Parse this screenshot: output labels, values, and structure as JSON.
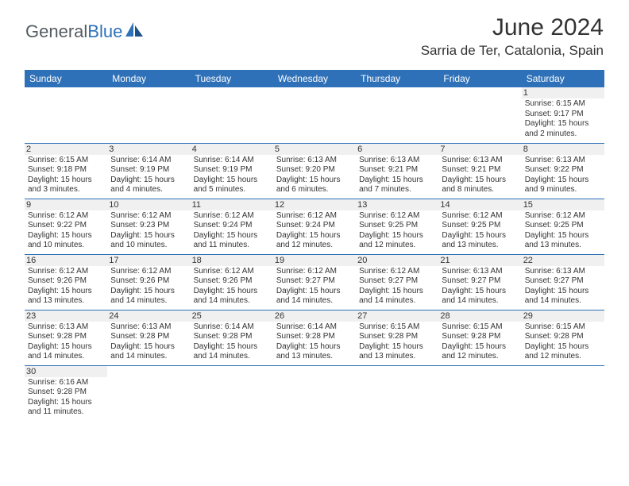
{
  "brand": {
    "general": "General",
    "blue": "Blue"
  },
  "title": "June 2024",
  "location": "Sarria de Ter, Catalonia, Spain",
  "colors": {
    "header_bg": "#2f71b8",
    "header_text": "#ffffff",
    "daynum_bg": "#f0f0f0",
    "border": "#2f71b8",
    "text": "#333333"
  },
  "weekdays": [
    "Sunday",
    "Monday",
    "Tuesday",
    "Wednesday",
    "Thursday",
    "Friday",
    "Saturday"
  ],
  "weeks": [
    [
      null,
      null,
      null,
      null,
      null,
      null,
      {
        "n": "1",
        "sr": "6:15 AM",
        "ss": "9:17 PM",
        "dl": "15 hours and 2 minutes."
      }
    ],
    [
      {
        "n": "2",
        "sr": "6:15 AM",
        "ss": "9:18 PM",
        "dl": "15 hours and 3 minutes."
      },
      {
        "n": "3",
        "sr": "6:14 AM",
        "ss": "9:19 PM",
        "dl": "15 hours and 4 minutes."
      },
      {
        "n": "4",
        "sr": "6:14 AM",
        "ss": "9:19 PM",
        "dl": "15 hours and 5 minutes."
      },
      {
        "n": "5",
        "sr": "6:13 AM",
        "ss": "9:20 PM",
        "dl": "15 hours and 6 minutes."
      },
      {
        "n": "6",
        "sr": "6:13 AM",
        "ss": "9:21 PM",
        "dl": "15 hours and 7 minutes."
      },
      {
        "n": "7",
        "sr": "6:13 AM",
        "ss": "9:21 PM",
        "dl": "15 hours and 8 minutes."
      },
      {
        "n": "8",
        "sr": "6:13 AM",
        "ss": "9:22 PM",
        "dl": "15 hours and 9 minutes."
      }
    ],
    [
      {
        "n": "9",
        "sr": "6:12 AM",
        "ss": "9:22 PM",
        "dl": "15 hours and 10 minutes."
      },
      {
        "n": "10",
        "sr": "6:12 AM",
        "ss": "9:23 PM",
        "dl": "15 hours and 10 minutes."
      },
      {
        "n": "11",
        "sr": "6:12 AM",
        "ss": "9:24 PM",
        "dl": "15 hours and 11 minutes."
      },
      {
        "n": "12",
        "sr": "6:12 AM",
        "ss": "9:24 PM",
        "dl": "15 hours and 12 minutes."
      },
      {
        "n": "13",
        "sr": "6:12 AM",
        "ss": "9:25 PM",
        "dl": "15 hours and 12 minutes."
      },
      {
        "n": "14",
        "sr": "6:12 AM",
        "ss": "9:25 PM",
        "dl": "15 hours and 13 minutes."
      },
      {
        "n": "15",
        "sr": "6:12 AM",
        "ss": "9:25 PM",
        "dl": "15 hours and 13 minutes."
      }
    ],
    [
      {
        "n": "16",
        "sr": "6:12 AM",
        "ss": "9:26 PM",
        "dl": "15 hours and 13 minutes."
      },
      {
        "n": "17",
        "sr": "6:12 AM",
        "ss": "9:26 PM",
        "dl": "15 hours and 14 minutes."
      },
      {
        "n": "18",
        "sr": "6:12 AM",
        "ss": "9:26 PM",
        "dl": "15 hours and 14 minutes."
      },
      {
        "n": "19",
        "sr": "6:12 AM",
        "ss": "9:27 PM",
        "dl": "15 hours and 14 minutes."
      },
      {
        "n": "20",
        "sr": "6:12 AM",
        "ss": "9:27 PM",
        "dl": "15 hours and 14 minutes."
      },
      {
        "n": "21",
        "sr": "6:13 AM",
        "ss": "9:27 PM",
        "dl": "15 hours and 14 minutes."
      },
      {
        "n": "22",
        "sr": "6:13 AM",
        "ss": "9:27 PM",
        "dl": "15 hours and 14 minutes."
      }
    ],
    [
      {
        "n": "23",
        "sr": "6:13 AM",
        "ss": "9:28 PM",
        "dl": "15 hours and 14 minutes."
      },
      {
        "n": "24",
        "sr": "6:13 AM",
        "ss": "9:28 PM",
        "dl": "15 hours and 14 minutes."
      },
      {
        "n": "25",
        "sr": "6:14 AM",
        "ss": "9:28 PM",
        "dl": "15 hours and 14 minutes."
      },
      {
        "n": "26",
        "sr": "6:14 AM",
        "ss": "9:28 PM",
        "dl": "15 hours and 13 minutes."
      },
      {
        "n": "27",
        "sr": "6:15 AM",
        "ss": "9:28 PM",
        "dl": "15 hours and 13 minutes."
      },
      {
        "n": "28",
        "sr": "6:15 AM",
        "ss": "9:28 PM",
        "dl": "15 hours and 12 minutes."
      },
      {
        "n": "29",
        "sr": "6:15 AM",
        "ss": "9:28 PM",
        "dl": "15 hours and 12 minutes."
      }
    ],
    [
      {
        "n": "30",
        "sr": "6:16 AM",
        "ss": "9:28 PM",
        "dl": "15 hours and 11 minutes."
      },
      null,
      null,
      null,
      null,
      null,
      null
    ]
  ],
  "labels": {
    "sunrise": "Sunrise:",
    "sunset": "Sunset:",
    "daylight": "Daylight:"
  }
}
